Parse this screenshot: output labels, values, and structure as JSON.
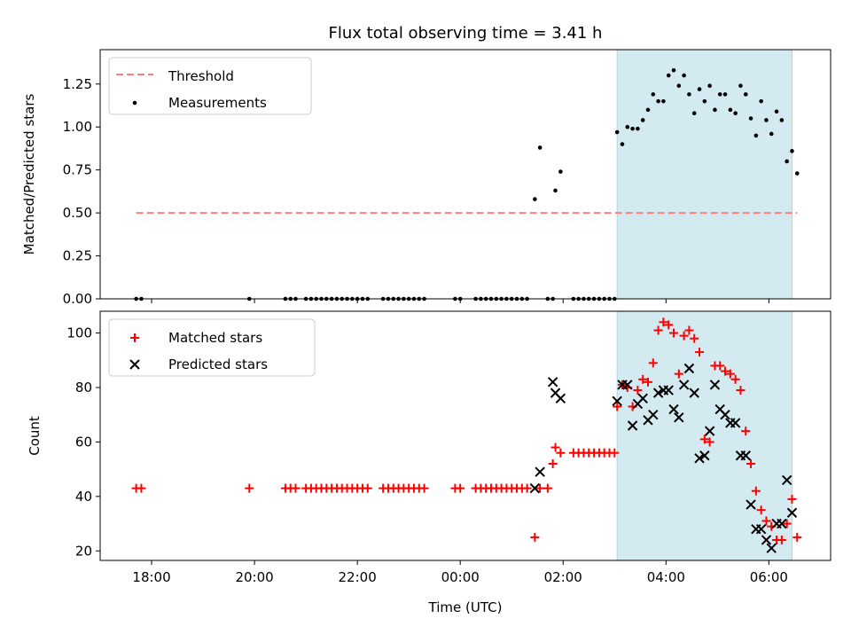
{
  "title": "Flux total observing time = 3.41 h",
  "xlabel": "Time (UTC)",
  "chart_data": [
    {
      "type": "scatter",
      "panel": "top",
      "ylabel": "Matched/Predicted stars",
      "ylim": [
        0,
        1.45
      ],
      "yticks": [
        "0.00",
        "0.25",
        "0.50",
        "0.75",
        "1.00",
        "1.25"
      ],
      "xlim": [
        17.0,
        31.2
      ],
      "xticks": [
        "18:00",
        "20:00",
        "22:00",
        "00:00",
        "02:00",
        "04:00",
        "06:00"
      ],
      "threshold": {
        "value": 0.5,
        "x_from": 17.7,
        "x_to": 30.55,
        "color": "#ff7f7f"
      },
      "shaded_span": {
        "x_from": 27.05,
        "x_to": 30.45,
        "color": "#d3eaf1"
      },
      "legend": {
        "location": "upper left",
        "entries": [
          "Threshold",
          "Measurements"
        ]
      },
      "series": [
        {
          "name": "Measurements",
          "color": "#000000",
          "x": [
            17.7,
            17.8,
            19.9,
            20.6,
            20.7,
            20.8,
            21.0,
            21.1,
            21.2,
            21.3,
            21.4,
            21.5,
            21.6,
            21.7,
            21.8,
            21.9,
            22.0,
            22.1,
            22.2,
            22.5,
            22.6,
            22.7,
            22.8,
            22.9,
            23.0,
            23.1,
            23.2,
            23.3,
            23.9,
            24.0,
            24.3,
            24.4,
            24.5,
            24.6,
            24.7,
            24.8,
            24.9,
            25.0,
            25.1,
            25.2,
            25.3,
            25.45,
            25.55,
            25.7,
            25.8,
            25.85,
            25.95,
            26.2,
            26.3,
            26.4,
            26.5,
            26.6,
            26.7,
            26.8,
            26.9,
            27.0,
            27.05,
            27.15,
            27.25,
            27.35,
            27.45,
            27.55,
            27.65,
            27.75,
            27.85,
            27.95,
            28.05,
            28.15,
            28.25,
            28.35,
            28.45,
            28.55,
            28.65,
            28.75,
            28.85,
            28.95,
            29.05,
            29.15,
            29.25,
            29.35,
            29.45,
            29.55,
            29.65,
            29.75,
            29.85,
            29.95,
            30.05,
            30.15,
            30.25,
            30.35,
            30.45,
            30.55
          ],
          "y": [
            0,
            0,
            0,
            0,
            0,
            0,
            0,
            0,
            0,
            0,
            0,
            0,
            0,
            0,
            0,
            0,
            0,
            0,
            0,
            0,
            0,
            0,
            0,
            0,
            0,
            0,
            0,
            0,
            0,
            0,
            0,
            0,
            0,
            0,
            0,
            0,
            0,
            0,
            0,
            0,
            0,
            0.58,
            0.88,
            0,
            0,
            0.63,
            0.74,
            0,
            0,
            0,
            0,
            0,
            0,
            0,
            0,
            0,
            0.97,
            0.9,
            1.0,
            0.99,
            0.99,
            1.04,
            1.1,
            1.19,
            1.15,
            1.15,
            1.3,
            1.33,
            1.24,
            1.3,
            1.19,
            1.08,
            1.22,
            1.15,
            1.24,
            1.1,
            1.19,
            1.19,
            1.1,
            1.08,
            1.24,
            1.19,
            1.05,
            0.95,
            1.15,
            1.04,
            0.96,
            1.09,
            1.04,
            0.8,
            0.86,
            0.73
          ]
        }
      ]
    },
    {
      "type": "scatter",
      "panel": "bottom",
      "ylabel": "Count",
      "ylim": [
        16.5,
        108
      ],
      "yticks": [
        "20",
        "40",
        "60",
        "80",
        "100"
      ],
      "xlim": [
        17.0,
        31.2
      ],
      "xticks": [
        "18:00",
        "20:00",
        "22:00",
        "00:00",
        "02:00",
        "04:00",
        "06:00"
      ],
      "shaded_span": {
        "x_from": 27.05,
        "x_to": 30.45,
        "color": "#d3eaf1"
      },
      "legend": {
        "location": "upper left",
        "entries": [
          "Matched stars",
          "Predicted stars"
        ]
      },
      "series": [
        {
          "name": "Matched stars",
          "color": "#ff0000",
          "marker": "+",
          "x": [
            17.7,
            17.8,
            19.9,
            20.6,
            20.7,
            20.8,
            21.0,
            21.1,
            21.2,
            21.3,
            21.4,
            21.5,
            21.6,
            21.7,
            21.8,
            21.9,
            22.0,
            22.1,
            22.2,
            22.5,
            22.6,
            22.7,
            22.8,
            22.9,
            23.0,
            23.1,
            23.2,
            23.3,
            23.9,
            24.0,
            24.3,
            24.4,
            24.5,
            24.6,
            24.7,
            24.8,
            24.9,
            25.0,
            25.1,
            25.2,
            25.3,
            25.45,
            25.55,
            25.7,
            25.8,
            25.85,
            25.95,
            26.2,
            26.3,
            26.4,
            26.5,
            26.6,
            26.7,
            26.8,
            26.9,
            27.0,
            27.05,
            27.15,
            27.25,
            27.35,
            27.45,
            27.55,
            27.65,
            27.75,
            27.85,
            27.95,
            28.05,
            28.15,
            28.25,
            28.35,
            28.45,
            28.55,
            28.65,
            28.75,
            28.85,
            28.95,
            29.05,
            29.15,
            29.25,
            29.35,
            29.45,
            29.55,
            29.65,
            29.75,
            29.85,
            29.95,
            30.05,
            30.15,
            30.25,
            30.35,
            30.45,
            30.55
          ],
          "y": [
            43,
            43,
            43,
            43,
            43,
            43,
            43,
            43,
            43,
            43,
            43,
            43,
            43,
            43,
            43,
            43,
            43,
            43,
            43,
            43,
            43,
            43,
            43,
            43,
            43,
            43,
            43,
            43,
            43,
            43,
            43,
            43,
            43,
            43,
            43,
            43,
            43,
            43,
            43,
            43,
            43,
            25,
            43,
            43,
            52,
            58,
            56,
            56,
            56,
            56,
            56,
            56,
            56,
            56,
            56,
            56,
            73,
            81,
            80,
            73,
            79,
            83,
            82,
            89,
            101,
            104,
            103,
            100,
            85,
            99,
            101,
            98,
            93,
            61,
            60,
            88,
            88,
            86,
            85,
            83,
            79,
            64,
            52,
            42,
            35,
            31,
            29,
            24,
            24,
            30,
            39,
            25
          ]
        },
        {
          "name": "Predicted stars",
          "color": "#000000",
          "marker": "x",
          "x": [
            25.45,
            25.55,
            25.8,
            25.85,
            25.95,
            27.05,
            27.15,
            27.25,
            27.35,
            27.45,
            27.55,
            27.65,
            27.75,
            27.85,
            27.95,
            28.05,
            28.15,
            28.25,
            28.35,
            28.45,
            28.55,
            28.65,
            28.75,
            28.85,
            28.95,
            29.05,
            29.15,
            29.25,
            29.35,
            29.45,
            29.55,
            29.65,
            29.75,
            29.85,
            29.95,
            30.05,
            30.15,
            30.25,
            30.35,
            30.45
          ],
          "y": [
            43,
            49,
            82,
            78,
            76,
            75,
            81,
            81,
            66,
            74,
            76,
            68,
            70,
            78,
            79,
            79,
            72,
            69,
            81,
            87,
            78,
            54,
            55,
            64,
            81,
            72,
            70,
            67,
            67,
            55,
            55,
            37,
            28,
            28,
            24,
            21,
            30,
            30,
            46,
            34
          ]
        }
      ]
    }
  ]
}
